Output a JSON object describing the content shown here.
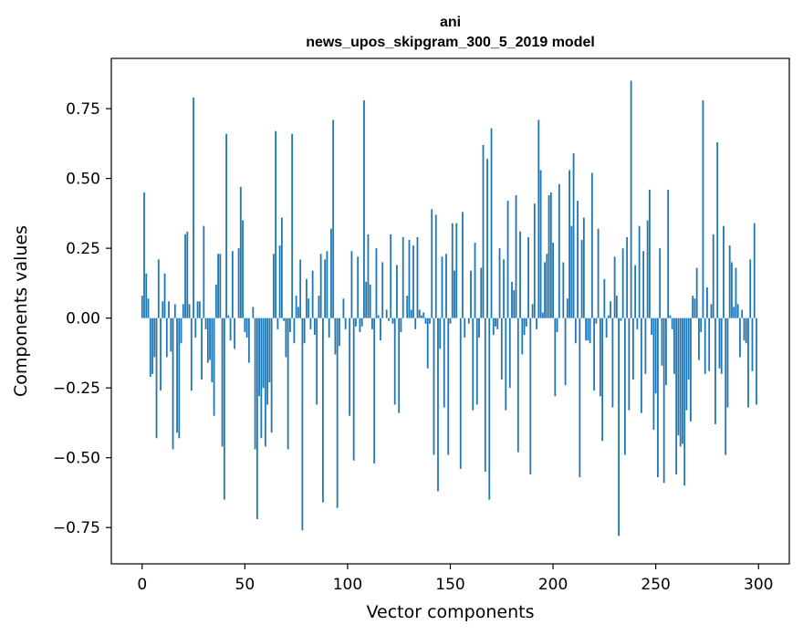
{
  "chart_data": {
    "type": "bar",
    "title_line1": "ani",
    "title_line2": "news_upos_skipgram_300_5_2019 model",
    "xlabel": "Vector components",
    "ylabel": "Components values",
    "xlim": [
      -15,
      315
    ],
    "ylim": [
      -0.88,
      0.93
    ],
    "xticks": [
      0,
      50,
      100,
      150,
      200,
      250,
      300
    ],
    "xtick_labels": [
      "0",
      "50",
      "100",
      "150",
      "200",
      "250",
      "300"
    ],
    "yticks": [
      -0.75,
      -0.5,
      -0.25,
      0.0,
      0.25,
      0.5,
      0.75
    ],
    "ytick_labels": [
      "−0.75",
      "−0.50",
      "−0.25",
      "0.00",
      "0.25",
      "0.50",
      "0.75"
    ],
    "color": "#1f77b4",
    "values": [
      0.08,
      0.45,
      0.16,
      0.07,
      -0.21,
      -0.2,
      -0.14,
      -0.43,
      0.21,
      -0.26,
      0.06,
      0.16,
      -0.14,
      0.06,
      -0.12,
      -0.47,
      0.05,
      -0.41,
      -0.43,
      -0.09,
      0.05,
      0.3,
      0.31,
      0.05,
      -0.26,
      0.79,
      -0.07,
      0.06,
      0.06,
      -0.22,
      0.33,
      -0.04,
      -0.16,
      -0.15,
      -0.23,
      -0.35,
      0.12,
      0.23,
      0.23,
      -0.46,
      -0.65,
      0.66,
      0.01,
      -0.08,
      0.24,
      -0.11,
      0.0,
      0.25,
      0.47,
      0.35,
      -0.05,
      -0.07,
      -0.16,
      0.0,
      0.04,
      -0.47,
      -0.72,
      -0.28,
      -0.43,
      -0.25,
      -0.46,
      -0.31,
      -0.23,
      -0.41,
      0.23,
      0.67,
      -0.04,
      0.26,
      0.36,
      -0.01,
      -0.14,
      -0.47,
      -0.05,
      0.66,
      -0.09,
      0.08,
      0.04,
      0.21,
      -0.76,
      -0.09,
      0.14,
      0.07,
      -0.04,
      0.17,
      -0.06,
      -0.31,
      0.08,
      0.23,
      -0.66,
      0.21,
      0.24,
      -0.07,
      0.32,
      0.71,
      -0.13,
      -0.68,
      -0.1,
      0.0,
      0.07,
      -0.04,
      0.0,
      -0.35,
      0.24,
      -0.51,
      -0.03,
      0.22,
      -0.05,
      -0.03,
      0.78,
      0.13,
      0.3,
      0.12,
      -0.04,
      -0.52,
      0.25,
      0.01,
      -0.08,
      0.2,
      0.0,
      0.03,
      -0.01,
      0.3,
      -0.02,
      -0.31,
      0.19,
      -0.34,
      -0.05,
      0.29,
      0.0,
      0.08,
      0.28,
      0.03,
      0.26,
      -0.04,
      0.29,
      0.03,
      0.01,
      0.02,
      -0.02,
      -0.18,
      -0.02,
      0.39,
      -0.49,
      0.37,
      -0.62,
      -0.11,
      0.22,
      -0.32,
      0.23,
      -0.49,
      -0.02,
      0.34,
      0.17,
      0.34,
      0.0,
      -0.54,
      0.38,
      -0.07,
      0.0,
      -0.02,
      0.17,
      -0.33,
      0.27,
      -0.31,
      -0.07,
      0.18,
      0.62,
      -0.55,
      0.57,
      -0.65,
      0.68,
      -0.06,
      -0.03,
      -0.04,
      0.25,
      -0.22,
      0.21,
      -0.33,
      0.42,
      -0.25,
      0.13,
      0.1,
      0.44,
      -0.48,
      0.31,
      -0.13,
      -0.06,
      -0.03,
      0.29,
      -0.56,
      0.05,
      0.41,
      -0.04,
      0.71,
      0.53,
      0.02,
      0.2,
      0.23,
      0.44,
      0.45,
      0.27,
      -0.28,
      -0.05,
      0.48,
      0.0,
      0.2,
      -0.24,
      0.07,
      0.53,
      0.33,
      0.59,
      -0.09,
      0.42,
      -0.57,
      0.28,
      0.36,
      -0.08,
      -0.08,
      -0.09,
      0.52,
      -0.26,
      -0.02,
      0.32,
      -0.28,
      -0.44,
      0.14,
      -0.07,
      0.01,
      0.06,
      -0.32,
      0.22,
      0.08,
      -0.78,
      -0.01,
      0.25,
      -0.49,
      0.29,
      -0.33,
      0.85,
      -0.22,
      0.19,
      -0.04,
      0.33,
      -0.34,
      0.24,
      -0.2,
      0.35,
      0.46,
      -0.06,
      -0.4,
      -0.27,
      -0.57,
      0.25,
      -0.17,
      -0.59,
      -0.24,
      0.46,
      0.01,
      -0.04,
      -0.2,
      -0.56,
      -0.42,
      -0.46,
      -0.45,
      -0.6,
      -0.33,
      -0.22,
      -0.37,
      0.08,
      0.07,
      0.18,
      -0.15,
      -0.05,
      0.78,
      -0.2,
      0.11,
      -0.19,
      0.05,
      0.3,
      -0.38,
      0.63,
      -0.18,
      -0.2,
      0.33,
      -0.49,
      -0.32,
      0.26,
      0.2,
      0.04,
      0.18,
      0.05,
      -0.14,
      0.03,
      -0.08,
      -0.09,
      -0.32,
      0.21,
      -0.19,
      0.34,
      -0.31
    ]
  }
}
